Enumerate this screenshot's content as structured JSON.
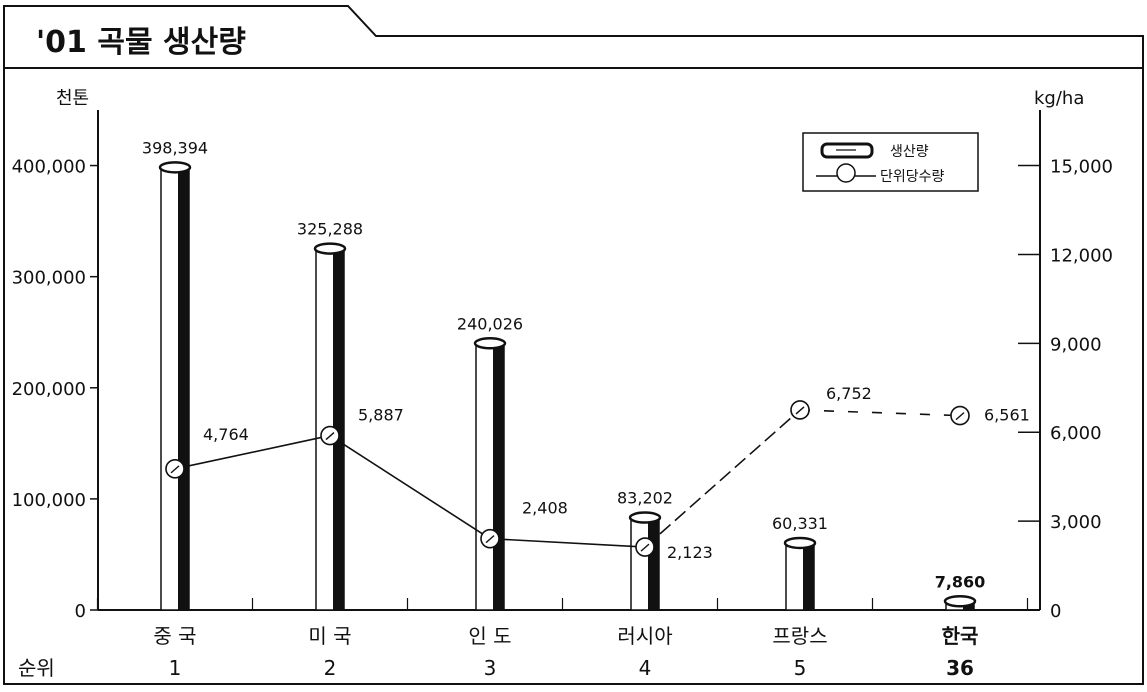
{
  "chart_data": {
    "type": "bar",
    "title": "'01 곡물 생산량",
    "y_unit_left": "천톤",
    "y_unit_right": "kg/ha",
    "rank_label": "순위",
    "categories": [
      "중 국",
      "미 국",
      "인 도",
      "러시아",
      "프랑스",
      "한국"
    ],
    "ranks": [
      "1",
      "2",
      "3",
      "4",
      "5",
      "36"
    ],
    "highlight_category": "한국",
    "series": [
      {
        "name": "생산량",
        "axis": "left",
        "type": "bar",
        "values": [
          398394,
          325288,
          240026,
          83202,
          60331,
          7860
        ],
        "value_labels": [
          "398,394",
          "325,288",
          "240,026",
          "83,202",
          "60,331",
          "7,860"
        ]
      },
      {
        "name": "단위당수량",
        "axis": "right",
        "type": "line",
        "values": [
          4764,
          5887,
          2408,
          2123,
          6752,
          6561
        ],
        "value_labels": [
          "4,764",
          "5,887",
          "2,408",
          "2,123",
          "6,752",
          "6,561"
        ]
      }
    ],
    "y_left": {
      "range": [
        0,
        450000
      ],
      "ticks": [
        0,
        100000,
        200000,
        300000,
        400000
      ],
      "tick_labels": [
        "0",
        "100,000",
        "200,000",
        "300,000",
        "400,000"
      ]
    },
    "y_right": {
      "range": [
        0,
        16875
      ],
      "ticks": [
        0,
        3000,
        6000,
        9000,
        12000,
        15000
      ],
      "tick_labels": [
        "0",
        "3,000",
        "6,000",
        "9,000",
        "12,000",
        "15,000"
      ]
    },
    "legend_position": "top-right",
    "grid": false
  }
}
